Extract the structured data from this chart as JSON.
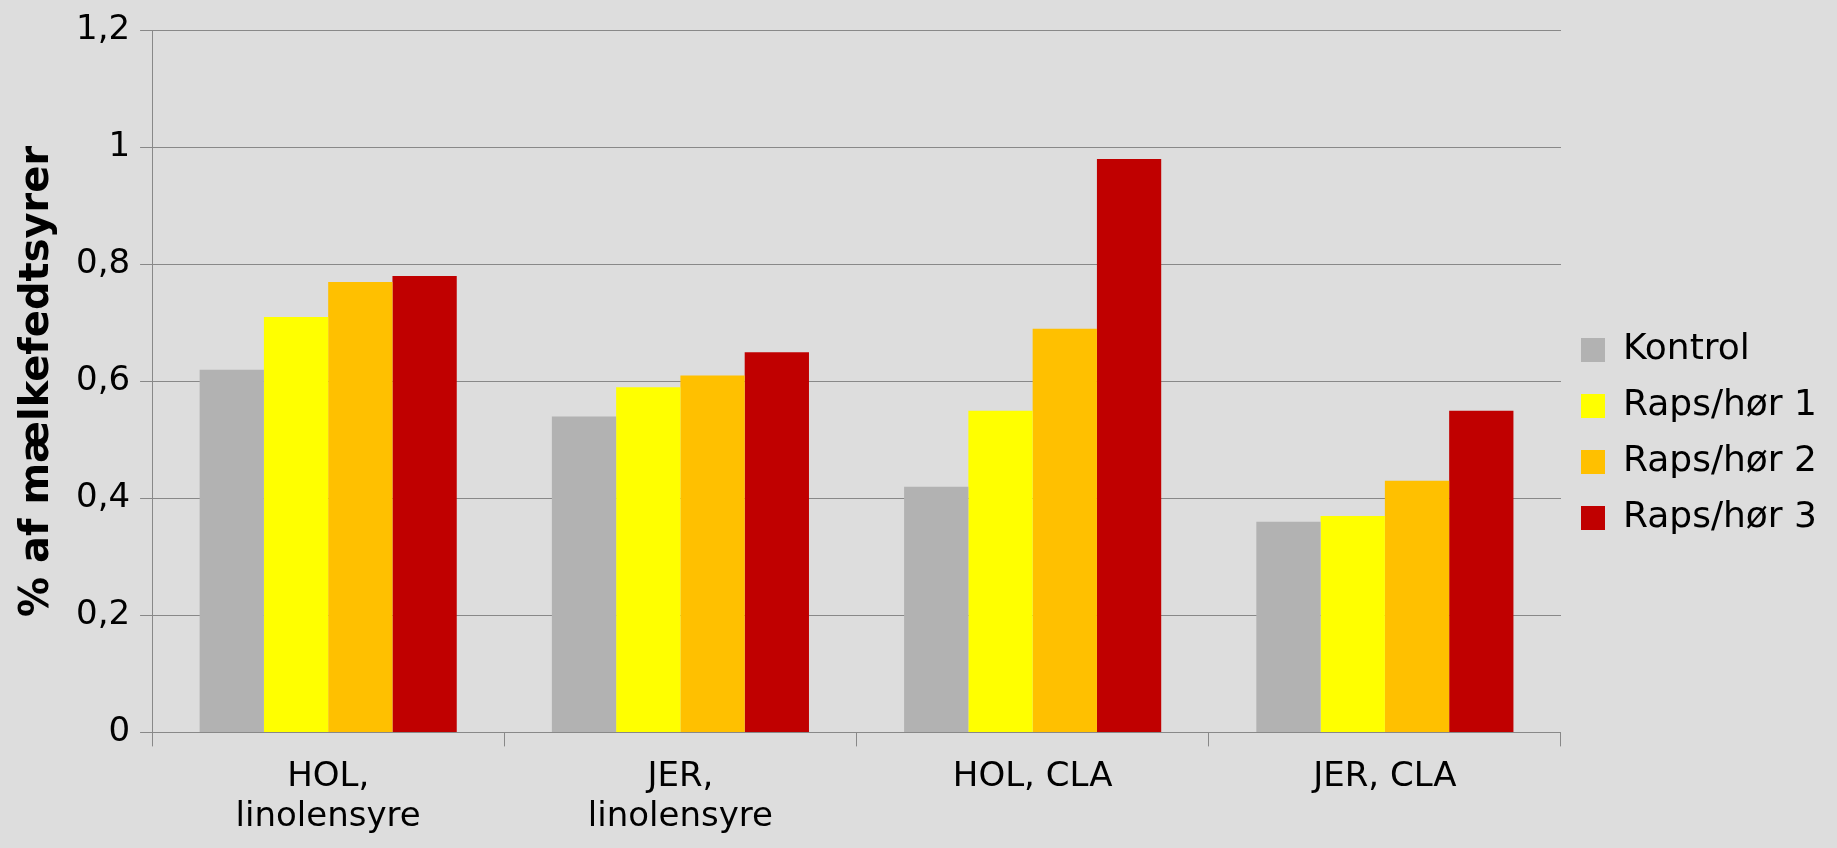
{
  "chart_data": {
    "type": "bar",
    "ylabel": "% af mælkefedtsyrer",
    "categories": [
      "HOL, linolensyre",
      "JER, linolensyre",
      "HOL, CLA",
      "JER, CLA"
    ],
    "series": [
      {
        "name": "Kontrol",
        "color": "#b2b2b2",
        "values": [
          0.62,
          0.54,
          0.42,
          0.36
        ]
      },
      {
        "name": "Raps/hør 1",
        "color": "#ffff00",
        "values": [
          0.71,
          0.59,
          0.55,
          0.37
        ]
      },
      {
        "name": "Raps/hør 2",
        "color": "#ffc000",
        "values": [
          0.77,
          0.61,
          0.69,
          0.43
        ]
      },
      {
        "name": "Raps/hør 3",
        "color": "#c00000",
        "values": [
          0.78,
          0.65,
          0.98,
          0.55
        ]
      }
    ],
    "ylim": [
      0,
      1.2
    ],
    "yticks": [
      0,
      {
        "value": 0.2,
        "label": "0,2"
      },
      {
        "value": 0.4,
        "label": "0,4"
      },
      {
        "value": 0.6,
        "label": "0,6"
      },
      {
        "value": 0.8,
        "label": "0,8"
      },
      1,
      {
        "value": 1.2,
        "label": "1,2"
      }
    ],
    "grid": "y",
    "legend": "right"
  }
}
